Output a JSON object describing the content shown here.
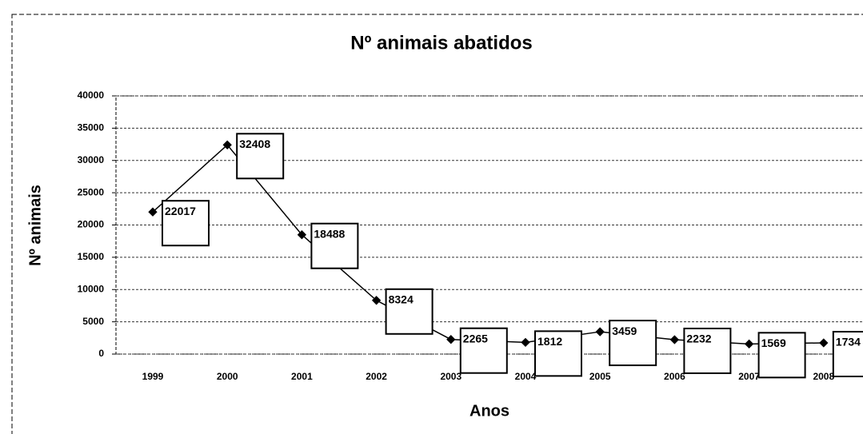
{
  "chart_data": {
    "type": "line",
    "title": "Nº animais abatidos",
    "x_label": "Anos",
    "y_label": "Nº animais",
    "categories": [
      "1999",
      "2000",
      "2001",
      "2002",
      "2003",
      "2004",
      "2005",
      "2006",
      "2007",
      "2008"
    ],
    "series": [
      {
        "name": "Nº animais",
        "color": "#000000",
        "values": [
          22017,
          32408,
          18488,
          8324,
          2265,
          1812,
          3459,
          2232,
          1569,
          1734
        ]
      }
    ],
    "ylim": [
      0,
      40000
    ],
    "yticks": [
      0,
      5000,
      10000,
      15000,
      20000,
      25000,
      30000,
      35000,
      40000
    ],
    "grid": true
  }
}
